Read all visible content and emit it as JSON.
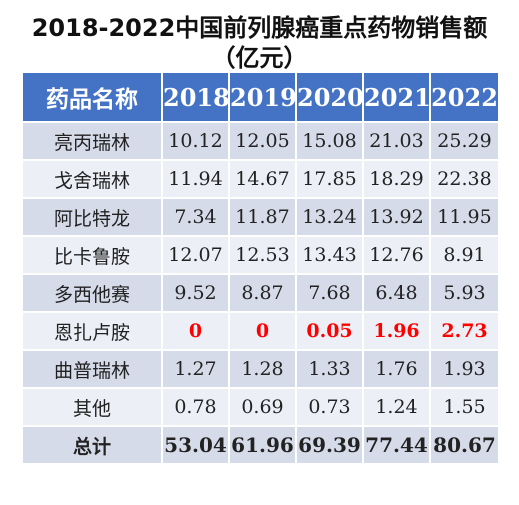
{
  "title": "2018-2022中国前列腺癌重点药物销售额",
  "subtitle": "（亿元）",
  "chart_data": {
    "type": "table",
    "columns": [
      "药品名称",
      "2018",
      "2019",
      "2020",
      "2021",
      "2022"
    ],
    "rows": [
      {
        "name": "亮丙瑞林",
        "values": [
          "10.12",
          "12.05",
          "15.08",
          "21.03",
          "25.29"
        ]
      },
      {
        "name": "戈舍瑞林",
        "values": [
          "11.94",
          "14.67",
          "17.85",
          "18.29",
          "22.38"
        ]
      },
      {
        "name": "阿比特龙",
        "values": [
          "7.34",
          "11.87",
          "13.24",
          "13.92",
          "11.95"
        ]
      },
      {
        "name": "比卡鲁胺",
        "values": [
          "12.07",
          "12.53",
          "13.43",
          "12.76",
          "8.91"
        ]
      },
      {
        "name": "多西他赛",
        "values": [
          "9.52",
          "8.87",
          "7.68",
          "6.48",
          "5.93"
        ]
      },
      {
        "name": "恩扎卢胺",
        "values": [
          "0",
          "0",
          "0.05",
          "1.96",
          "2.73"
        ],
        "highlight": true
      },
      {
        "name": "曲普瑞林",
        "values": [
          "1.27",
          "1.28",
          "1.33",
          "1.76",
          "1.93"
        ]
      },
      {
        "name": "其他",
        "values": [
          "0.78",
          "0.69",
          "0.73",
          "1.24",
          "1.55"
        ]
      }
    ],
    "total": {
      "name": "总计",
      "values": [
        "53.04",
        "61.96",
        "69.39",
        "77.44",
        "80.67"
      ]
    }
  },
  "colors": {
    "header_bg": "#4472c4",
    "highlight_text": "#ff0000"
  }
}
